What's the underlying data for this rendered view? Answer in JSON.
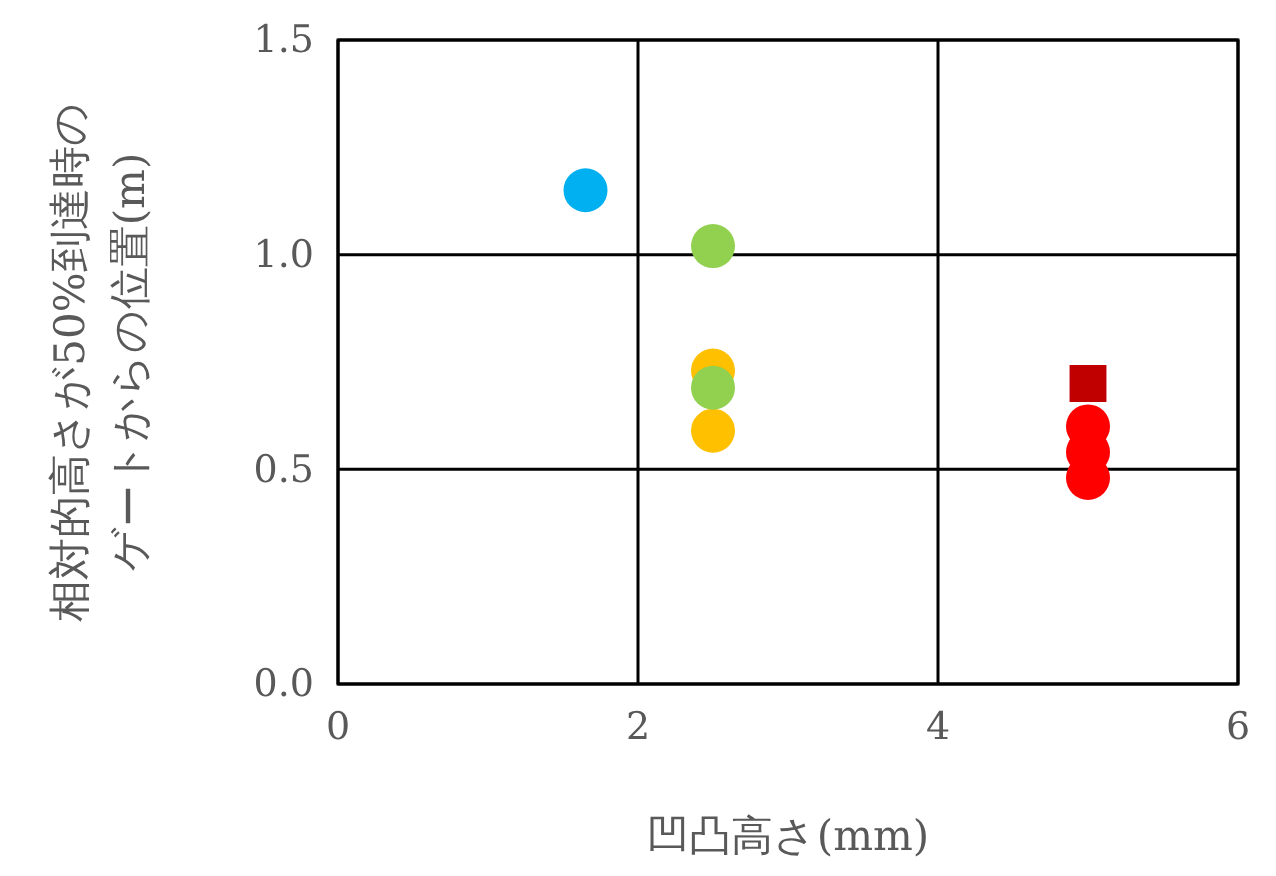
{
  "chart_data": {
    "type": "scatter",
    "xlabel": "凹凸高さ(mm)",
    "ylabel": "相対的高さが50%到達時のゲートからの位置(m)",
    "xlim": [
      0,
      6
    ],
    "xticks": [
      0,
      2,
      4,
      6
    ],
    "ylim": [
      0,
      1.5
    ],
    "yticks": [
      {
        "value": 0,
        "label": "0.0"
      },
      {
        "value": 0.5,
        "label": "0.5"
      },
      {
        "value": 1,
        "label": "1.0"
      },
      {
        "value": 1.5,
        "label": "1.5"
      }
    ],
    "grid": true,
    "marker": "circle",
    "series": [
      {
        "color": "#00b0f0",
        "x": [
          1.65
        ],
        "values": [
          1.15
        ]
      },
      {
        "color": "#ffc000",
        "x": [
          2.5,
          2.5
        ],
        "values": [
          0.73,
          0.59
        ]
      },
      {
        "color": "#92d050",
        "x": [
          2.5,
          2.5
        ],
        "values": [
          1.02,
          0.69
        ]
      },
      {
        "color": "#c00000",
        "marker": "square",
        "x": [
          5
        ],
        "values": [
          0.7
        ]
      },
      {
        "color": "#ff0000",
        "x": [
          5,
          5,
          5
        ],
        "values": [
          0.6,
          0.54,
          0.48
        ]
      }
    ]
  }
}
